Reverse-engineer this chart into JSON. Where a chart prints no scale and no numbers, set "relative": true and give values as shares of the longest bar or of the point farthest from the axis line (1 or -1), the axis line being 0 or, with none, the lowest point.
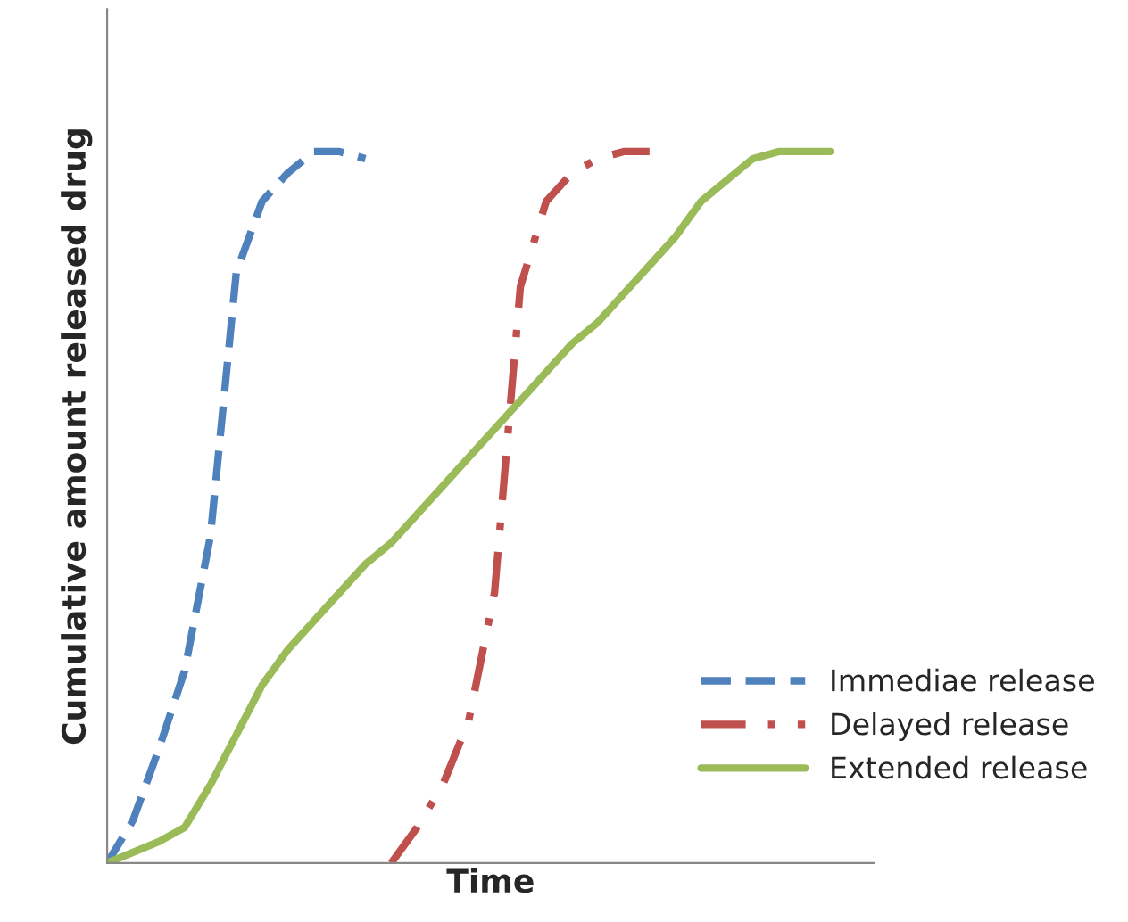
{
  "chart_data": {
    "type": "line",
    "relative": true,
    "xlabel": "Time",
    "ylabel": "Cumulative amount released drug",
    "categories": [
      null,
      null,
      null,
      null,
      null,
      null,
      null,
      null,
      null,
      null,
      null,
      null,
      null,
      null,
      null,
      null,
      null,
      null,
      null,
      null,
      null,
      null,
      null,
      null,
      null,
      null,
      null,
      null,
      null
    ],
    "series": [
      {
        "name": "Immediae release",
        "color": "#4f81bd",
        "line_style": "dashed",
        "values": [
          0,
          0.06,
          0.16,
          0.27,
          0.46,
          0.83,
          0.93,
          0.97,
          1.0,
          1.0,
          0.99,
          null,
          null,
          null,
          null,
          null,
          null,
          null,
          null,
          null,
          null,
          null,
          null,
          null,
          null,
          null,
          null,
          null,
          null
        ]
      },
      {
        "name": "Delayed release",
        "color": "#c0504d",
        "line_style": "dashdot",
        "values": [
          null,
          null,
          null,
          null,
          null,
          null,
          null,
          null,
          null,
          null,
          null,
          0,
          0.05,
          0.11,
          0.2,
          0.38,
          0.81,
          0.93,
          0.97,
          0.99,
          1.0,
          1.0,
          null,
          null,
          null,
          null,
          null,
          null,
          null
        ]
      },
      {
        "name": "Extended release",
        "color": "#9bbb59",
        "line_style": "solid",
        "values": [
          0,
          0.015,
          0.03,
          0.05,
          0.11,
          0.18,
          0.25,
          0.3,
          0.34,
          0.38,
          0.42,
          0.45,
          0.49,
          0.53,
          0.57,
          0.61,
          0.65,
          0.69,
          0.73,
          0.76,
          0.8,
          0.84,
          0.88,
          0.93,
          0.96,
          0.99,
          1.0,
          1.0,
          1.0
        ]
      }
    ],
    "legend": "bottom right",
    "marker": "none"
  }
}
